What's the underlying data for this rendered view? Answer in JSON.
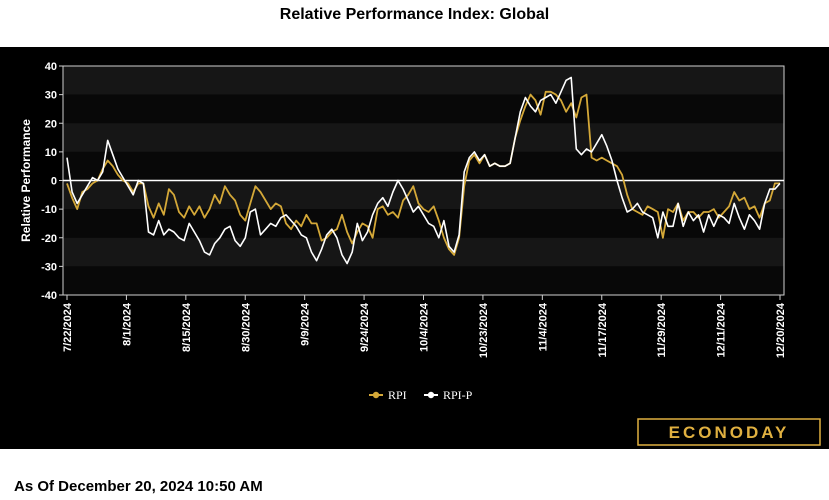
{
  "chart_data": {
    "type": "line",
    "title": "Relative Performance Index: Global",
    "ylabel": "Relative Performance",
    "xlabel": "",
    "ylim": [
      -40,
      40
    ],
    "yticks": [
      40,
      30,
      20,
      10,
      0,
      -10,
      -20,
      -30,
      -40
    ],
    "xticks": [
      "7/22/2024",
      "8/1/2024",
      "8/15/2024",
      "8/30/2024",
      "9/9/2024",
      "9/24/2024",
      "10/4/2024",
      "10/23/2024",
      "11/4/2024",
      "11/17/2024",
      "11/29/2024",
      "12/11/2024",
      "12/20/2024"
    ],
    "legend_position": "bottom-center",
    "series": [
      {
        "name": "RPI",
        "color": "#d4a838",
        "values": [
          -1,
          -6,
          -10,
          -4,
          -3,
          -1,
          0,
          4,
          7,
          5,
          2,
          0,
          -1,
          -4,
          -1,
          -1,
          -9,
          -13,
          -8,
          -12,
          -3,
          -5,
          -11,
          -13,
          -9,
          -12,
          -9,
          -13,
          -10,
          -5,
          -8,
          -2,
          -5,
          -7,
          -12,
          -14,
          -8,
          -2,
          -4,
          -7,
          -10,
          -8,
          -9,
          -15,
          -17,
          -14,
          -16,
          -12,
          -15,
          -15,
          -21,
          -20,
          -18,
          -17,
          -12,
          -18,
          -22,
          -18,
          -15,
          -16,
          -20,
          -10,
          -9,
          -12,
          -11,
          -13,
          -7,
          -5,
          -2,
          -8,
          -10,
          -11,
          -9,
          -14,
          -20,
          -24,
          -26,
          -20,
          -2,
          7,
          9,
          6,
          9,
          5,
          6,
          5,
          5,
          6,
          15,
          21,
          26,
          30,
          28,
          23,
          31,
          31,
          30,
          28,
          24,
          27,
          22,
          29,
          30,
          8,
          7,
          8,
          7,
          6,
          5,
          2,
          -5,
          -10,
          -11,
          -12,
          -9,
          -10,
          -11,
          -20,
          -10,
          -11,
          -8,
          -14,
          -11,
          -11,
          -13,
          -11,
          -11,
          -10,
          -13,
          -11,
          -9,
          -4,
          -7,
          -6,
          -10,
          -9,
          -13,
          -8,
          -7,
          -1,
          -1
        ]
      },
      {
        "name": "RPI-P",
        "color": "#ffffff",
        "values": [
          8,
          -4,
          -8,
          -5,
          -2,
          1,
          0,
          3,
          14,
          9,
          4,
          1,
          -2,
          -5,
          0,
          -1,
          -18,
          -19,
          -14,
          -19,
          -17,
          -18,
          -20,
          -21,
          -15,
          -18,
          -21,
          -25,
          -26,
          -22,
          -20,
          -17,
          -16,
          -21,
          -23,
          -20,
          -11,
          -10,
          -19,
          -17,
          -15,
          -16,
          -13,
          -12,
          -14,
          -16,
          -19,
          -20,
          -25,
          -28,
          -24,
          -19,
          -17,
          -20,
          -26,
          -29,
          -25,
          -15,
          -21,
          -18,
          -12,
          -8,
          -6,
          -9,
          -4,
          0,
          -3,
          -7,
          -11,
          -9,
          -12,
          -15,
          -16,
          -20,
          -14,
          -23,
          -25,
          -19,
          3,
          8,
          10,
          7,
          9,
          5,
          6,
          5,
          5,
          6,
          15,
          24,
          29,
          26,
          24,
          28,
          29,
          30,
          27,
          31,
          35,
          36,
          11,
          9,
          11,
          10,
          13,
          16,
          12,
          7,
          0,
          -6,
          -11,
          -10,
          -8,
          -11,
          -12,
          -13,
          -20,
          -11,
          -16,
          -16,
          -8,
          -16,
          -11,
          -14,
          -12,
          -18,
          -12,
          -16,
          -12,
          -13,
          -15,
          -8,
          -13,
          -17,
          -12,
          -14,
          -17,
          -8,
          -3,
          -3,
          -1
        ]
      }
    ]
  },
  "footer": {
    "as_of": "As Of December 20, 2024 10:50 AM"
  },
  "logo": {
    "text": "ECONODAY"
  }
}
